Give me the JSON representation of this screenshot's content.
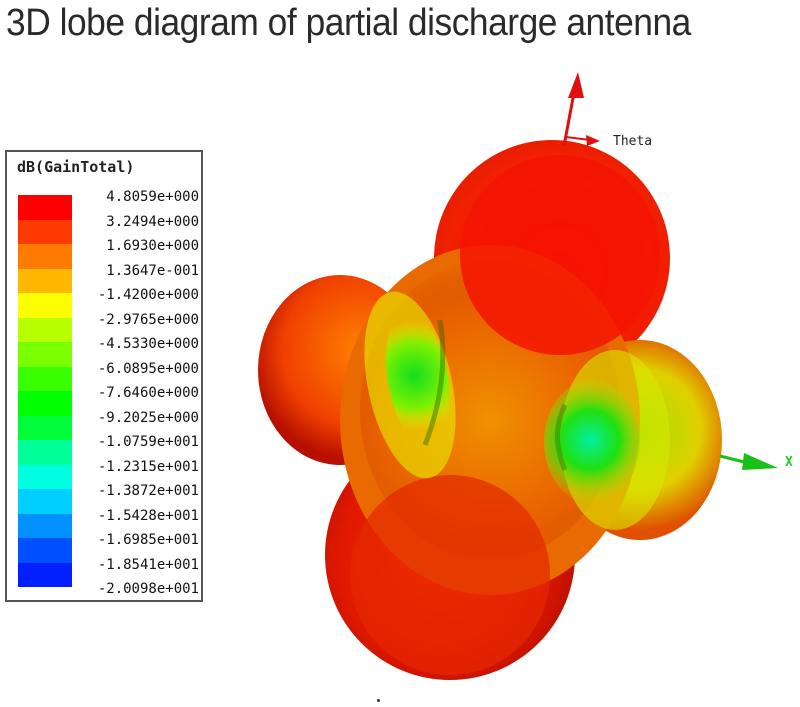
{
  "title": "3D lobe diagram of partial discharge antenna",
  "legend": {
    "title": "dB(GainTotal)",
    "entries": [
      {
        "label": "4.8059e+000",
        "color": "#ff0000"
      },
      {
        "label": "3.2494e+000",
        "color": "#ff3a00"
      },
      {
        "label": "1.6930e+000",
        "color": "#ff7a00"
      },
      {
        "label": "1.3647e-001",
        "color": "#ffb800"
      },
      {
        "label": "-1.4200e+000",
        "color": "#ffff00"
      },
      {
        "label": "-2.9765e+000",
        "color": "#b8ff00"
      },
      {
        "label": "-4.5330e+000",
        "color": "#7aff00"
      },
      {
        "label": "-6.0895e+000",
        "color": "#3aff00"
      },
      {
        "label": "-7.6460e+000",
        "color": "#00ff00"
      },
      {
        "label": "-9.2025e+000",
        "color": "#00ff3a"
      },
      {
        "label": "-1.0759e+001",
        "color": "#00ff99"
      },
      {
        "label": "-1.2315e+001",
        "color": "#00ffe0"
      },
      {
        "label": "-1.3872e+001",
        "color": "#00d0ff"
      },
      {
        "label": "-1.5428e+001",
        "color": "#0090ff"
      },
      {
        "label": "-1.6985e+001",
        "color": "#0050ff"
      },
      {
        "label": "-1.8541e+001",
        "color": "#0020ff"
      },
      {
        "label": "-2.0098e+001",
        "color": "#0000ff"
      }
    ]
  },
  "axes": {
    "theta_label": "Theta",
    "x_label": "X",
    "theta_color": "#e01010",
    "x_color": "#18c018"
  },
  "chart_data": {
    "type": "3d-radiation-pattern",
    "title": "3D lobe diagram of partial discharge antenna",
    "colorbar_label": "dB(GainTotal)",
    "colorbar_range": [
      -20.098,
      4.8059
    ],
    "colorbar_ticks": [
      4.8059,
      3.2494,
      1.693,
      0.13647,
      -1.42,
      -2.9765,
      -4.533,
      -6.0895,
      -7.646,
      -9.2025,
      -10.759,
      -12.315,
      -13.872,
      -15.428,
      -16.985,
      -18.541,
      -20.098
    ],
    "axis_labels": [
      "Theta",
      "X"
    ],
    "lobes": 4
  }
}
